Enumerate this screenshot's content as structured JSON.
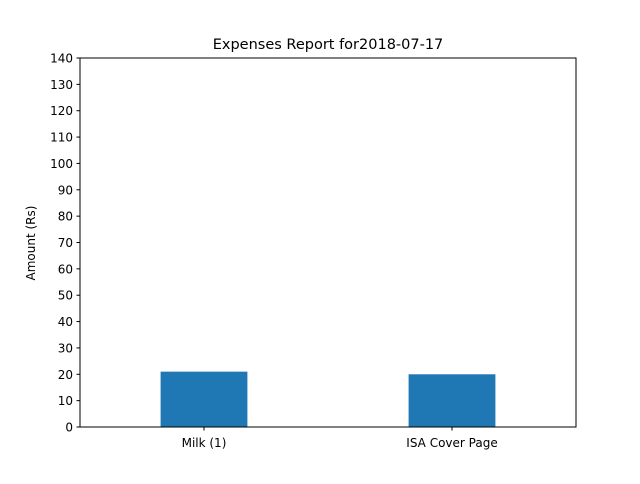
{
  "chart_data": {
    "type": "bar",
    "title": "Expenses Report for2018-07-17",
    "xlabel": "",
    "ylabel": "Amount (Rs)",
    "categories": [
      "Milk (1)",
      "ISA Cover Page"
    ],
    "values": [
      21,
      20
    ],
    "ylim": [
      0,
      140
    ],
    "yticks": [
      0,
      10,
      20,
      30,
      40,
      50,
      60,
      70,
      80,
      90,
      100,
      110,
      120,
      130,
      140
    ],
    "grid": false,
    "bar_color": "#1f77b4"
  }
}
